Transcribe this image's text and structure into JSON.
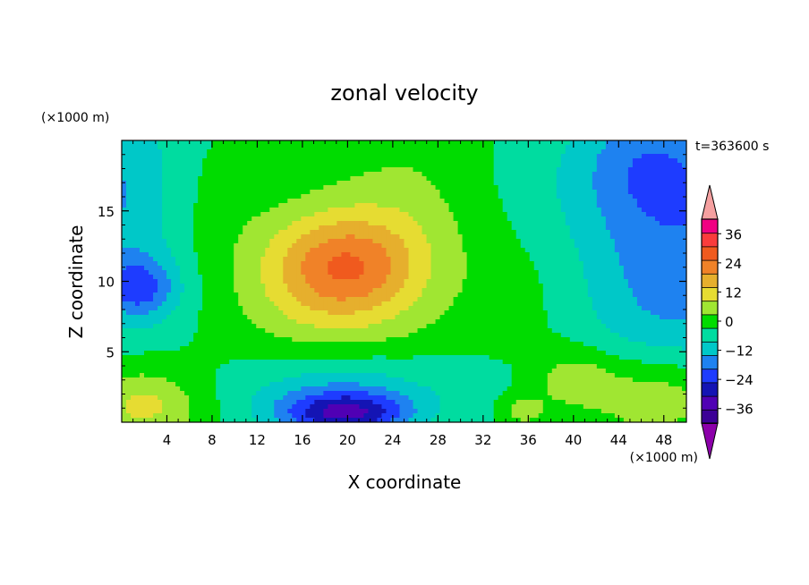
{
  "chart_data": {
    "type": "heatmap",
    "subtype": "filled-contour",
    "title": "zonal velocity",
    "xlabel": "X coordinate",
    "ylabel": "Z coordinate",
    "x_unit": "(×1000 m)",
    "y_unit": "(×1000 m)",
    "time_label": "t=363600 s",
    "xlim": [
      0,
      50
    ],
    "ylim": [
      0,
      20
    ],
    "x_ticks": [
      4,
      8,
      12,
      16,
      20,
      24,
      28,
      32,
      36,
      40,
      44,
      48
    ],
    "y_ticks": [
      5,
      10,
      15
    ],
    "colorbar": {
      "levels": [
        -42,
        -36,
        -30,
        -24,
        -18,
        -12,
        -6,
        0,
        6,
        12,
        18,
        24,
        30,
        36,
        42
      ],
      "colors": [
        "#3c0096",
        "#5000b4",
        "#1414b4",
        "#1e3cff",
        "#1e82f0",
        "#00c8c8",
        "#00dca0",
        "#00dc00",
        "#a0e632",
        "#e6dc32",
        "#e6af2d",
        "#f08228",
        "#f05a1e",
        "#fa3c3c",
        "#f00082"
      ],
      "under_color": "#8c00aa",
      "over_color": "#f5a0a0",
      "tick_labels": [
        "36",
        "24",
        "12",
        "0",
        "−12",
        "−24",
        "−36"
      ],
      "tick_values": [
        36,
        24,
        12,
        0,
        -12,
        -24,
        -36
      ]
    },
    "features": [
      {
        "x": 20,
        "z": 11,
        "value": 22,
        "sx": 4.5,
        "sz": 2.6
      },
      {
        "x": 20,
        "z": 11,
        "value": 8,
        "sx": 10,
        "sz": 5
      },
      {
        "x": 20,
        "z": 0.6,
        "value": -26,
        "sx": 4,
        "sz": 1.1
      },
      {
        "x": 21,
        "z": 2.2,
        "value": -12,
        "sx": 7.5,
        "sz": 2.2
      },
      {
        "x": 1.5,
        "z": 1.2,
        "value": 14,
        "sx": 3.5,
        "sz": 1.8
      },
      {
        "x": 48,
        "z": 1.8,
        "value": 12,
        "sx": 4.5,
        "sz": 2.2
      },
      {
        "x": 40,
        "z": 3,
        "value": 10,
        "sx": 2.8,
        "sz": 1.6
      },
      {
        "x": 35.5,
        "z": 0.8,
        "value": 10,
        "sx": 1.6,
        "sz": 0.9
      },
      {
        "x": 1.5,
        "z": 9.5,
        "value": -18,
        "sx": 2.4,
        "sz": 1.6
      },
      {
        "x": 0,
        "z": 16,
        "value": -12,
        "sx": 4,
        "sz": 5
      },
      {
        "x": 50,
        "z": 13,
        "value": -15,
        "sx": 7.5,
        "sz": 7
      },
      {
        "x": 46,
        "z": 18,
        "value": -10,
        "sx": 4,
        "sz": 3
      },
      {
        "x": 33,
        "z": 12,
        "value": -1,
        "sx": 4,
        "sz": 7
      },
      {
        "x": 20,
        "z": 6,
        "value": 1,
        "sx": 6,
        "sz": 1.5
      }
    ]
  }
}
